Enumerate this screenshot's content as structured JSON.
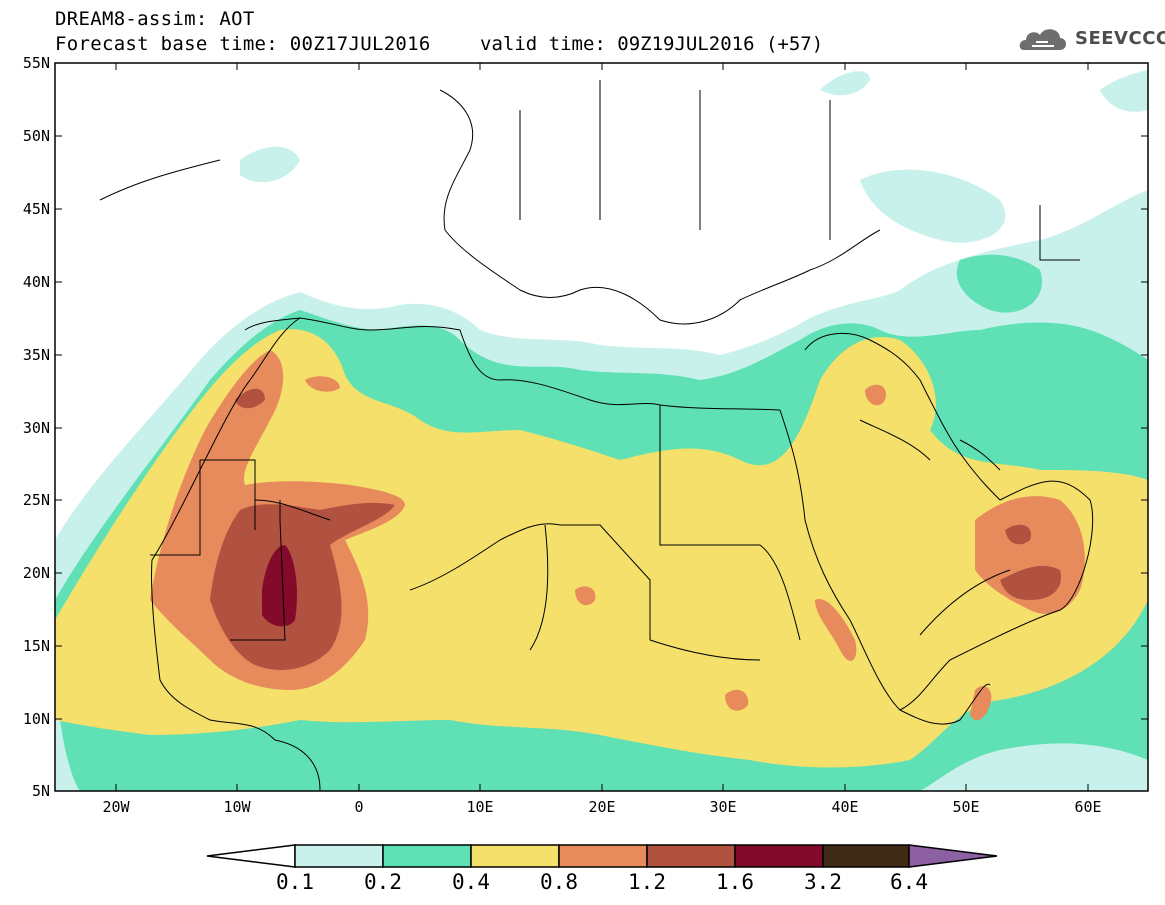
{
  "header": {
    "title": "DREAM8-assim: AOT",
    "base_time": "Forecast base time: 00Z17JUL2016",
    "valid_time": "valid time: 09Z19JUL2016 (+57)",
    "logo_text": "SEEVCCC"
  },
  "map": {
    "lat_labels": [
      "55N",
      "50N",
      "45N",
      "40N",
      "35N",
      "30N",
      "25N",
      "20N",
      "15N",
      "10N",
      "5N"
    ],
    "lon_labels": [
      "20W",
      "10W",
      "0",
      "10E",
      "20E",
      "30E",
      "40E",
      "50E",
      "60E"
    ],
    "land_color": "#ffffff",
    "border_color": "#000000"
  },
  "colorbar": {
    "labels": [
      "0.1",
      "0.2",
      "0.4",
      "0.8",
      "1.2",
      "1.6",
      "3.2",
      "6.4"
    ],
    "colors": [
      "#ffffff",
      "#c7f1ea",
      "#5fe0b5",
      "#f4e06a",
      "#e88b5c",
      "#b1513f",
      "#830a2b",
      "#3f2a16",
      "#8d5fa3"
    ]
  }
}
